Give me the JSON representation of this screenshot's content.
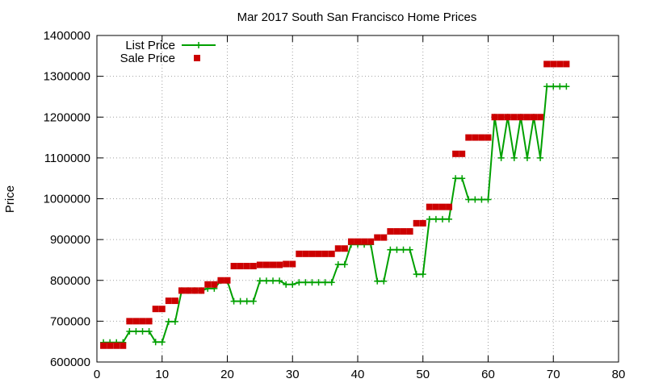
{
  "chart_data": {
    "type": "line",
    "title": "Mar 2017 South San Francisco Home Prices",
    "xlabel": "",
    "ylabel": "Price",
    "xlim": [
      0,
      80
    ],
    "ylim": [
      600000,
      1400000
    ],
    "xticks": [
      "0",
      "10",
      "20",
      "30",
      "40",
      "50",
      "60",
      "70",
      "80"
    ],
    "yticks": [
      "600000",
      "700000",
      "800000",
      "900000",
      "1000000",
      "1100000",
      "1200000",
      "1300000",
      "1400000"
    ],
    "grid": true,
    "legend": "top-left",
    "series": [
      {
        "name": "List Price",
        "type": "line",
        "color": "#00a000",
        "marker": "plus",
        "x": [
          1,
          2,
          3,
          4,
          5,
          6,
          7,
          8,
          9,
          10,
          11,
          12,
          13,
          14,
          15,
          16,
          17,
          18,
          19,
          20,
          21,
          22,
          23,
          24,
          25,
          26,
          27,
          28,
          29,
          30,
          31,
          32,
          33,
          34,
          35,
          36,
          37,
          38,
          39,
          40,
          41,
          42,
          43,
          44,
          45,
          46,
          47,
          48,
          49,
          50,
          51,
          52,
          53,
          54,
          55,
          56,
          57,
          58,
          59,
          60,
          61,
          62,
          63,
          64,
          65,
          66,
          67,
          68,
          69,
          70,
          71,
          72
        ],
        "y": [
          648000,
          648000,
          648000,
          648000,
          675000,
          675000,
          675000,
          675000,
          649000,
          649000,
          699000,
          699000,
          775000,
          775000,
          775000,
          775000,
          780000,
          780000,
          799000,
          799000,
          749000,
          749000,
          749000,
          749000,
          799000,
          799000,
          799000,
          799000,
          790000,
          790000,
          795000,
          795000,
          795000,
          795000,
          795000,
          795000,
          839000,
          839000,
          888000,
          888000,
          888000,
          888000,
          798000,
          798000,
          875000,
          875000,
          875000,
          875000,
          815000,
          815000,
          950000,
          950000,
          950000,
          950000,
          1050000,
          1050000,
          998000,
          998000,
          998000,
          998000,
          1200000,
          1100000,
          1200000,
          1100000,
          1200000,
          1100000,
          1200000,
          1100000,
          1275000,
          1275000,
          1275000,
          1275000
        ]
      },
      {
        "name": "Sale Price",
        "type": "scatter",
        "color": "#cc0000",
        "marker": "square",
        "x": [
          1,
          2,
          3,
          4,
          5,
          6,
          7,
          8,
          9,
          10,
          11,
          12,
          13,
          14,
          15,
          16,
          17,
          18,
          19,
          20,
          21,
          22,
          23,
          24,
          25,
          26,
          27,
          28,
          29,
          30,
          31,
          32,
          33,
          34,
          35,
          36,
          37,
          38,
          39,
          40,
          41,
          42,
          43,
          44,
          45,
          46,
          47,
          48,
          49,
          50,
          51,
          52,
          53,
          54,
          55,
          56,
          57,
          58,
          59,
          60,
          61,
          62,
          63,
          64,
          65,
          66,
          67,
          68,
          69,
          70,
          71,
          72
        ],
        "y": [
          640000,
          640000,
          640000,
          640000,
          700000,
          700000,
          700000,
          700000,
          730000,
          730000,
          750000,
          750000,
          775000,
          775000,
          775000,
          775000,
          790000,
          790000,
          800000,
          800000,
          835000,
          835000,
          835000,
          835000,
          838000,
          838000,
          838000,
          838000,
          840000,
          840000,
          865000,
          865000,
          865000,
          865000,
          865000,
          865000,
          878000,
          878000,
          895000,
          895000,
          895000,
          895000,
          905000,
          905000,
          920000,
          920000,
          920000,
          920000,
          940000,
          940000,
          980000,
          980000,
          980000,
          980000,
          1110000,
          1110000,
          1150000,
          1150000,
          1150000,
          1150000,
          1200000,
          1200000,
          1200000,
          1200000,
          1200000,
          1200000,
          1200000,
          1200000,
          1330000,
          1330000,
          1330000,
          1330000
        ]
      }
    ]
  }
}
